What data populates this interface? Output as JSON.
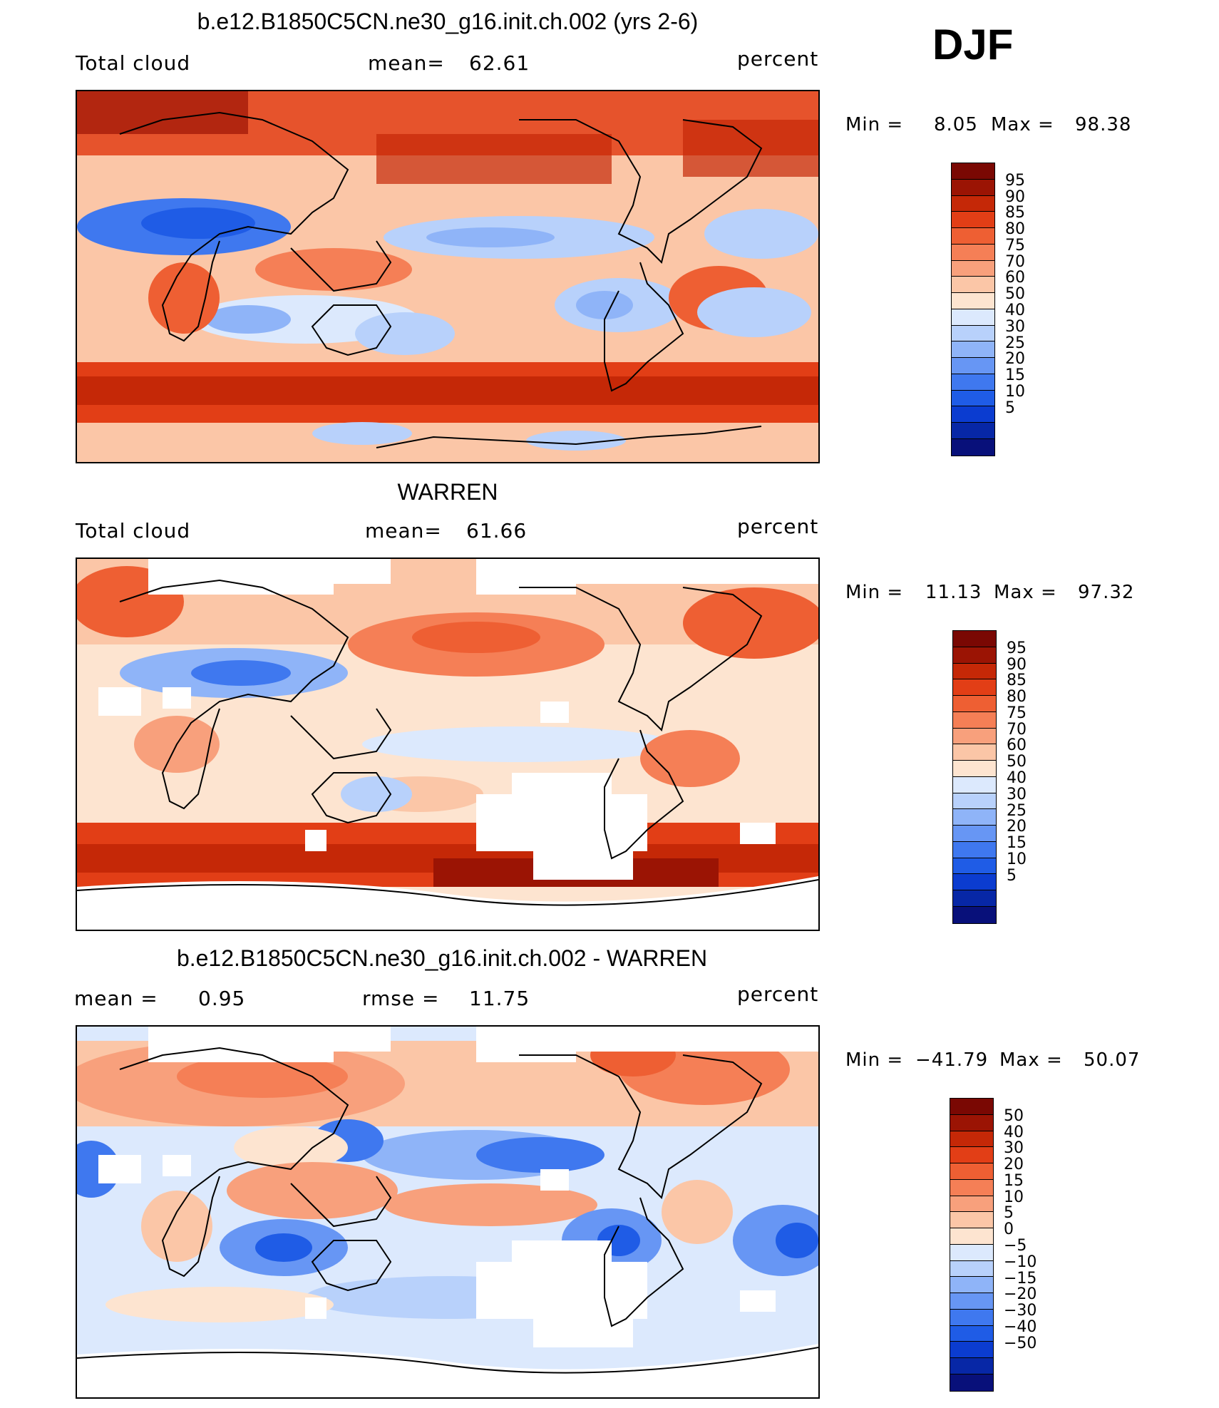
{
  "season": "DJF",
  "panels": [
    {
      "title": "b.e12.B1850C5CN.ne30_g16.init.ch.002 (yrs 2-6)",
      "left_label": "Total cloud",
      "center_label": "mean=",
      "center_value": "62.61",
      "right_label": "percent",
      "min_label": "Min =",
      "min_value": "8.05",
      "max_label": "Max =",
      "max_value": "98.38",
      "palette": [
        "#08107a",
        "#0727a6",
        "#0b3cd0",
        "#1f5ce6",
        "#3f78ef",
        "#6796f4",
        "#8fb4f8",
        "#b8d1fb",
        "#dce9fd",
        "#fde4d0",
        "#fbc6a7",
        "#f8a07c",
        "#f57f56",
        "#ee5f33",
        "#e23e16",
        "#c52807",
        "#9b1404",
        "#7a0803"
      ],
      "ticks": [
        "95",
        "90",
        "85",
        "80",
        "75",
        "70",
        "60",
        "50",
        "40",
        "30",
        "25",
        "20",
        "15",
        "10",
        "5"
      ],
      "has_missing": false
    },
    {
      "title": "WARREN",
      "left_label": "Total cloud",
      "center_label": "mean=",
      "center_value": "61.66",
      "right_label": "percent",
      "min_label": "Min =",
      "min_value": "11.13",
      "max_label": "Max =",
      "max_value": "97.32",
      "palette": [
        "#08107a",
        "#0727a6",
        "#0b3cd0",
        "#1f5ce6",
        "#3f78ef",
        "#6796f4",
        "#8fb4f8",
        "#b8d1fb",
        "#dce9fd",
        "#fde4d0",
        "#fbc6a7",
        "#f8a07c",
        "#f57f56",
        "#ee5f33",
        "#e23e16",
        "#c52807",
        "#9b1404",
        "#7a0803"
      ],
      "ticks": [
        "95",
        "90",
        "85",
        "80",
        "75",
        "70",
        "60",
        "50",
        "40",
        "30",
        "25",
        "20",
        "15",
        "10",
        "5"
      ],
      "has_missing": true
    },
    {
      "title": "b.e12.B1850C5CN.ne30_g16.init.ch.002 - WARREN",
      "left_label": "mean =",
      "left_value": "0.95",
      "center_label": "rmse =",
      "center_value": "11.75",
      "right_label": "percent",
      "min_label": "Min =",
      "min_value": "−41.79",
      "max_label": "Max =",
      "max_value": "50.07",
      "palette": [
        "#08107a",
        "#0727a6",
        "#0b3cd0",
        "#1f5ce6",
        "#3f78ef",
        "#6796f4",
        "#8fb4f8",
        "#b8d1fb",
        "#dce9fd",
        "#fde4d0",
        "#fbc6a7",
        "#f8a07c",
        "#f57f56",
        "#ee5f33",
        "#e23e16",
        "#c52807",
        "#9b1404",
        "#7a0803"
      ],
      "ticks": [
        "50",
        "40",
        "30",
        "20",
        "15",
        "10",
        "5",
        "0",
        "−5",
        "−10",
        "−15",
        "−20",
        "−30",
        "−40",
        "−50"
      ],
      "has_missing": true
    }
  ],
  "chart_data": [
    {
      "type": "heatmap",
      "title": "b.e12.B1850C5CN.ne30_g16.init.ch.002 (yrs 2-6)",
      "variable": "Total cloud",
      "units": "percent",
      "season": "DJF",
      "mean": 62.61,
      "min": 8.05,
      "max": 98.38,
      "colorbar_levels": [
        5,
        10,
        15,
        20,
        25,
        30,
        40,
        50,
        60,
        70,
        75,
        80,
        85,
        90,
        95
      ]
    },
    {
      "type": "heatmap",
      "title": "WARREN",
      "variable": "Total cloud",
      "units": "percent",
      "season": "DJF",
      "mean": 61.66,
      "min": 11.13,
      "max": 97.32,
      "colorbar_levels": [
        5,
        10,
        15,
        20,
        25,
        30,
        40,
        50,
        60,
        70,
        75,
        80,
        85,
        90,
        95
      ]
    },
    {
      "type": "heatmap",
      "title": "b.e12.B1850C5CN.ne30_g16.init.ch.002 - WARREN",
      "units": "percent",
      "season": "DJF",
      "mean": 0.95,
      "rmse": 11.75,
      "min": -41.79,
      "max": 50.07,
      "colorbar_levels": [
        -50,
        -40,
        -30,
        -20,
        -15,
        -10,
        -5,
        0,
        5,
        10,
        15,
        20,
        30,
        40,
        50
      ]
    }
  ]
}
